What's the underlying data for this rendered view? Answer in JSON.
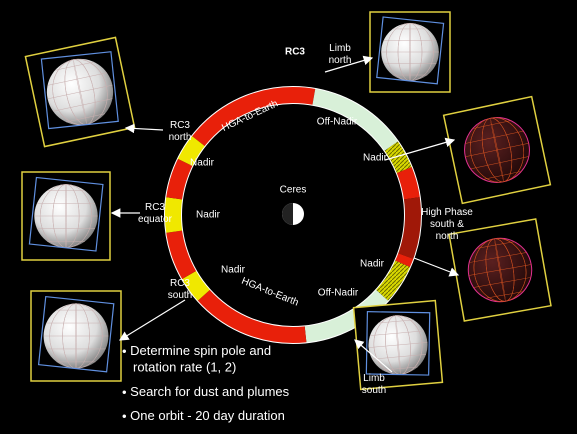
{
  "title": "RC3",
  "center": {
    "label": "Ceres"
  },
  "ring_labels": {
    "hga_top": "HGA-to-Earth",
    "off_nadir_top": "Off-Nadir",
    "nadir_top_right": "Nadir",
    "nadir_top_left": "Nadir",
    "nadir_left": "Nadir",
    "nadir_bottom_left": "Nadir",
    "hga_bottom": "HGA-to-Earth",
    "off_nadir_bottom": "Off-Nadir",
    "nadir_bottom_right": "Nadir"
  },
  "outer_labels": {
    "rc3_north": [
      "RC3",
      "north"
    ],
    "rc3_equator": [
      "RC3",
      "equator"
    ],
    "rc3_south": [
      "RC3",
      "south"
    ],
    "limb_north": [
      "Limb",
      "north"
    ],
    "high_phase": [
      "High Phase",
      "south &",
      "north"
    ],
    "limb_south": [
      "Limb",
      "south"
    ]
  },
  "bullets": [
    [
      "Determine spin pole and",
      "rotation rate (1, 2)"
    ],
    [
      "Search for dust and plumes"
    ],
    [
      "One orbit  - 20 day duration"
    ]
  ]
}
